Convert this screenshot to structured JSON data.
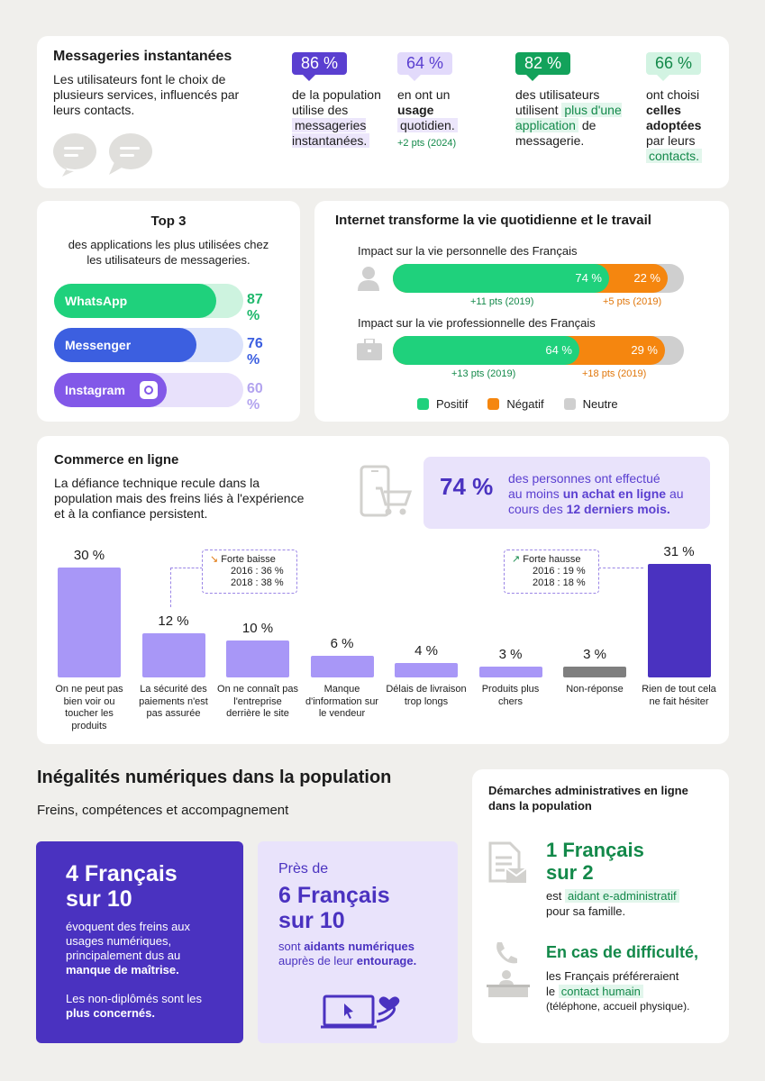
{
  "messageries": {
    "title": "Messageries instantanées",
    "subtitle": "Les utilisateurs font le choix de plusieurs services, influencés par leurs contacts.",
    "stats": [
      {
        "value": "86 %",
        "pre": "de la population utilise des",
        "hl": "messageries instantanées.",
        "note": ""
      },
      {
        "value": "64 %",
        "pre": "en ont un",
        "bold": "usage",
        "hl": "quotidien.",
        "note": "+2 pts (2024)"
      },
      {
        "value": "82 %",
        "pre": "des utilisateurs utilisent",
        "hl": "plus d'une application",
        "post": "de messagerie."
      },
      {
        "value": "66 %",
        "pre": "ont choisi",
        "bold": "celles adoptées",
        "mid": "par leurs",
        "hl": "contacts."
      }
    ]
  },
  "top3": {
    "title": "Top 3",
    "subtitle": "des applications les plus utilisées chez les utilisateurs de messageries.",
    "apps": [
      {
        "name": "WhatsApp",
        "pct": "87 %",
        "value": 87,
        "color": "#1fd17c",
        "track": "#cdf3df"
      },
      {
        "name": "Messenger",
        "pct": "76 %",
        "value": 76,
        "color": "#3c5fe0",
        "track": "#dbe2fb"
      },
      {
        "name": "Instagram",
        "pct": "60 %",
        "value": 60,
        "color": "#8258e8",
        "track": "#e8e1fb"
      }
    ]
  },
  "internet": {
    "title": "Internet transforme la vie quotidienne et le travail",
    "perso": {
      "label": "Impact sur la vie personnelle des Français",
      "pos": 74,
      "neg": 22,
      "pos_label": "74 %",
      "neg_label": "22 %",
      "pos_delta": "+11 pts (2019)",
      "neg_delta": "+5 pts (2019)"
    },
    "pro": {
      "label": "Impact sur la vie professionnelle des Français",
      "pos": 64,
      "neg": 29,
      "pos_label": "64 %",
      "neg_label": "29 %",
      "pos_delta": "+13 pts (2019)",
      "neg_delta": "+18 pts (2019)"
    },
    "legend": [
      {
        "label": "Positif",
        "color": "#1fd17c"
      },
      {
        "label": "Négatif",
        "color": "#f5860f"
      },
      {
        "label": "Neutre",
        "color": "#cfcfcf"
      }
    ]
  },
  "commerce": {
    "title": "Commerce en ligne",
    "subtitle": "La défiance technique recule dans la population mais des freins liés à l'expérience et à la confiance persistent.",
    "highlight": {
      "value": "74 %",
      "l1": "des personnes ont effectué",
      "l2a": "au moins",
      "l2b": "un achat en ligne",
      "l2c": "au",
      "l3a": "cours des",
      "l3b": "12 derniers mois."
    },
    "note_baisse": {
      "title": "Forte baisse",
      "l1": "2016 : 36 %",
      "l2": "2018 : 38 %"
    },
    "note_hausse": {
      "title": "Forte hausse",
      "l1": "2016 : 19 %",
      "l2": "2018 : 18 %"
    }
  },
  "chart_data": {
    "type": "bar",
    "categories": [
      "On ne peut pas bien voir ou toucher les produits",
      "La sécurité des paiements n'est pas assurée",
      "On ne connaît pas l'entreprise derrière le site",
      "Manque d'information sur le vendeur",
      "Délais de livraison trop longs",
      "Produits plus chers",
      "Non-réponse",
      "Rien de tout cela ne fait hésiter"
    ],
    "values": [
      30,
      12,
      10,
      6,
      4,
      3,
      3,
      31
    ],
    "value_labels": [
      "30 %",
      "12 %",
      "10 %",
      "6 %",
      "4 %",
      "3 %",
      "3 %",
      "31 %"
    ],
    "colors": [
      "#a897f7",
      "#a897f7",
      "#a897f7",
      "#a897f7",
      "#a897f7",
      "#a897f7",
      "#7f7f7f",
      "#4a32c0"
    ],
    "ylim": [
      0,
      31
    ]
  },
  "inegalites": {
    "title": "Inégalités numériques dans la population",
    "subtitle": "Freins, compétences et accompagnement",
    "card1": {
      "big1": "4 Français",
      "big2": "sur 10",
      "t1": "évoquent des freins aux usages numériques, principalement dus au",
      "t1b": "manque de maîtrise.",
      "t2": "Les non-diplômés sont les",
      "t2b": "plus concernés."
    },
    "card2": {
      "small": "Près de",
      "big1": "6 Français",
      "big2": "sur 10",
      "t1": "sont",
      "t1b": "aidants numériques",
      "t2": "auprès de leur",
      "t2b": "entourage."
    }
  },
  "demarches": {
    "title": "Démarches administratives en ligne dans la population",
    "b1": {
      "big1": "1 Français",
      "big2": "sur 2",
      "pre": "est",
      "hl": "aidant e-administratif",
      "post": "pour sa famille."
    },
    "b2": {
      "big": "En cas de difficulté,",
      "l1": "les Français préféreraient",
      "pre": "le",
      "hl": "contact humain",
      "post": "(téléphone, accueil physique)."
    }
  }
}
